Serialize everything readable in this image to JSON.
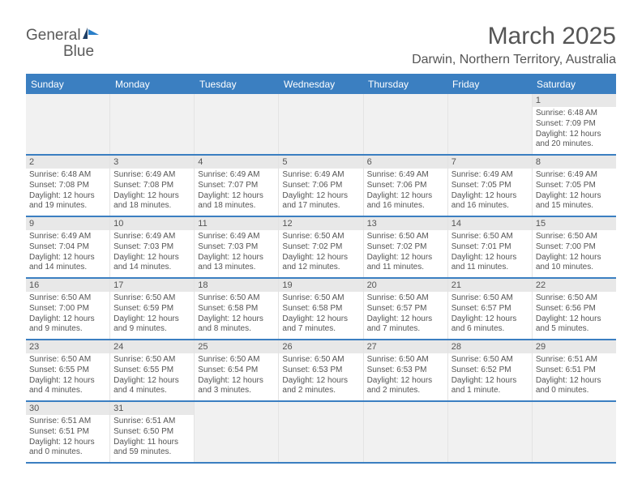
{
  "logo": {
    "text_general": "General",
    "text_blue": "Blue"
  },
  "title": "March 2025",
  "location": "Darwin, Northern Territory, Australia",
  "header_bg": "#3b7fc1",
  "daynum_bg": "#e8e8e8",
  "empty_bg": "#f1f1f1",
  "border_color": "#3b7fc1",
  "dow": [
    "Sunday",
    "Monday",
    "Tuesday",
    "Wednesday",
    "Thursday",
    "Friday",
    "Saturday"
  ],
  "weeks": [
    [
      null,
      null,
      null,
      null,
      null,
      null,
      {
        "n": "1",
        "sr": "Sunrise: 6:48 AM",
        "ss": "Sunset: 7:09 PM",
        "d1": "Daylight: 12 hours",
        "d2": "and 20 minutes."
      }
    ],
    [
      {
        "n": "2",
        "sr": "Sunrise: 6:48 AM",
        "ss": "Sunset: 7:08 PM",
        "d1": "Daylight: 12 hours",
        "d2": "and 19 minutes."
      },
      {
        "n": "3",
        "sr": "Sunrise: 6:49 AM",
        "ss": "Sunset: 7:08 PM",
        "d1": "Daylight: 12 hours",
        "d2": "and 18 minutes."
      },
      {
        "n": "4",
        "sr": "Sunrise: 6:49 AM",
        "ss": "Sunset: 7:07 PM",
        "d1": "Daylight: 12 hours",
        "d2": "and 18 minutes."
      },
      {
        "n": "5",
        "sr": "Sunrise: 6:49 AM",
        "ss": "Sunset: 7:06 PM",
        "d1": "Daylight: 12 hours",
        "d2": "and 17 minutes."
      },
      {
        "n": "6",
        "sr": "Sunrise: 6:49 AM",
        "ss": "Sunset: 7:06 PM",
        "d1": "Daylight: 12 hours",
        "d2": "and 16 minutes."
      },
      {
        "n": "7",
        "sr": "Sunrise: 6:49 AM",
        "ss": "Sunset: 7:05 PM",
        "d1": "Daylight: 12 hours",
        "d2": "and 16 minutes."
      },
      {
        "n": "8",
        "sr": "Sunrise: 6:49 AM",
        "ss": "Sunset: 7:05 PM",
        "d1": "Daylight: 12 hours",
        "d2": "and 15 minutes."
      }
    ],
    [
      {
        "n": "9",
        "sr": "Sunrise: 6:49 AM",
        "ss": "Sunset: 7:04 PM",
        "d1": "Daylight: 12 hours",
        "d2": "and 14 minutes."
      },
      {
        "n": "10",
        "sr": "Sunrise: 6:49 AM",
        "ss": "Sunset: 7:03 PM",
        "d1": "Daylight: 12 hours",
        "d2": "and 14 minutes."
      },
      {
        "n": "11",
        "sr": "Sunrise: 6:49 AM",
        "ss": "Sunset: 7:03 PM",
        "d1": "Daylight: 12 hours",
        "d2": "and 13 minutes."
      },
      {
        "n": "12",
        "sr": "Sunrise: 6:50 AM",
        "ss": "Sunset: 7:02 PM",
        "d1": "Daylight: 12 hours",
        "d2": "and 12 minutes."
      },
      {
        "n": "13",
        "sr": "Sunrise: 6:50 AM",
        "ss": "Sunset: 7:02 PM",
        "d1": "Daylight: 12 hours",
        "d2": "and 11 minutes."
      },
      {
        "n": "14",
        "sr": "Sunrise: 6:50 AM",
        "ss": "Sunset: 7:01 PM",
        "d1": "Daylight: 12 hours",
        "d2": "and 11 minutes."
      },
      {
        "n": "15",
        "sr": "Sunrise: 6:50 AM",
        "ss": "Sunset: 7:00 PM",
        "d1": "Daylight: 12 hours",
        "d2": "and 10 minutes."
      }
    ],
    [
      {
        "n": "16",
        "sr": "Sunrise: 6:50 AM",
        "ss": "Sunset: 7:00 PM",
        "d1": "Daylight: 12 hours",
        "d2": "and 9 minutes."
      },
      {
        "n": "17",
        "sr": "Sunrise: 6:50 AM",
        "ss": "Sunset: 6:59 PM",
        "d1": "Daylight: 12 hours",
        "d2": "and 9 minutes."
      },
      {
        "n": "18",
        "sr": "Sunrise: 6:50 AM",
        "ss": "Sunset: 6:58 PM",
        "d1": "Daylight: 12 hours",
        "d2": "and 8 minutes."
      },
      {
        "n": "19",
        "sr": "Sunrise: 6:50 AM",
        "ss": "Sunset: 6:58 PM",
        "d1": "Daylight: 12 hours",
        "d2": "and 7 minutes."
      },
      {
        "n": "20",
        "sr": "Sunrise: 6:50 AM",
        "ss": "Sunset: 6:57 PM",
        "d1": "Daylight: 12 hours",
        "d2": "and 7 minutes."
      },
      {
        "n": "21",
        "sr": "Sunrise: 6:50 AM",
        "ss": "Sunset: 6:57 PM",
        "d1": "Daylight: 12 hours",
        "d2": "and 6 minutes."
      },
      {
        "n": "22",
        "sr": "Sunrise: 6:50 AM",
        "ss": "Sunset: 6:56 PM",
        "d1": "Daylight: 12 hours",
        "d2": "and 5 minutes."
      }
    ],
    [
      {
        "n": "23",
        "sr": "Sunrise: 6:50 AM",
        "ss": "Sunset: 6:55 PM",
        "d1": "Daylight: 12 hours",
        "d2": "and 4 minutes."
      },
      {
        "n": "24",
        "sr": "Sunrise: 6:50 AM",
        "ss": "Sunset: 6:55 PM",
        "d1": "Daylight: 12 hours",
        "d2": "and 4 minutes."
      },
      {
        "n": "25",
        "sr": "Sunrise: 6:50 AM",
        "ss": "Sunset: 6:54 PM",
        "d1": "Daylight: 12 hours",
        "d2": "and 3 minutes."
      },
      {
        "n": "26",
        "sr": "Sunrise: 6:50 AM",
        "ss": "Sunset: 6:53 PM",
        "d1": "Daylight: 12 hours",
        "d2": "and 2 minutes."
      },
      {
        "n": "27",
        "sr": "Sunrise: 6:50 AM",
        "ss": "Sunset: 6:53 PM",
        "d1": "Daylight: 12 hours",
        "d2": "and 2 minutes."
      },
      {
        "n": "28",
        "sr": "Sunrise: 6:50 AM",
        "ss": "Sunset: 6:52 PM",
        "d1": "Daylight: 12 hours",
        "d2": "and 1 minute."
      },
      {
        "n": "29",
        "sr": "Sunrise: 6:51 AM",
        "ss": "Sunset: 6:51 PM",
        "d1": "Daylight: 12 hours",
        "d2": "and 0 minutes."
      }
    ],
    [
      {
        "n": "30",
        "sr": "Sunrise: 6:51 AM",
        "ss": "Sunset: 6:51 PM",
        "d1": "Daylight: 12 hours",
        "d2": "and 0 minutes."
      },
      {
        "n": "31",
        "sr": "Sunrise: 6:51 AM",
        "ss": "Sunset: 6:50 PM",
        "d1": "Daylight: 11 hours",
        "d2": "and 59 minutes."
      },
      null,
      null,
      null,
      null,
      null
    ]
  ]
}
